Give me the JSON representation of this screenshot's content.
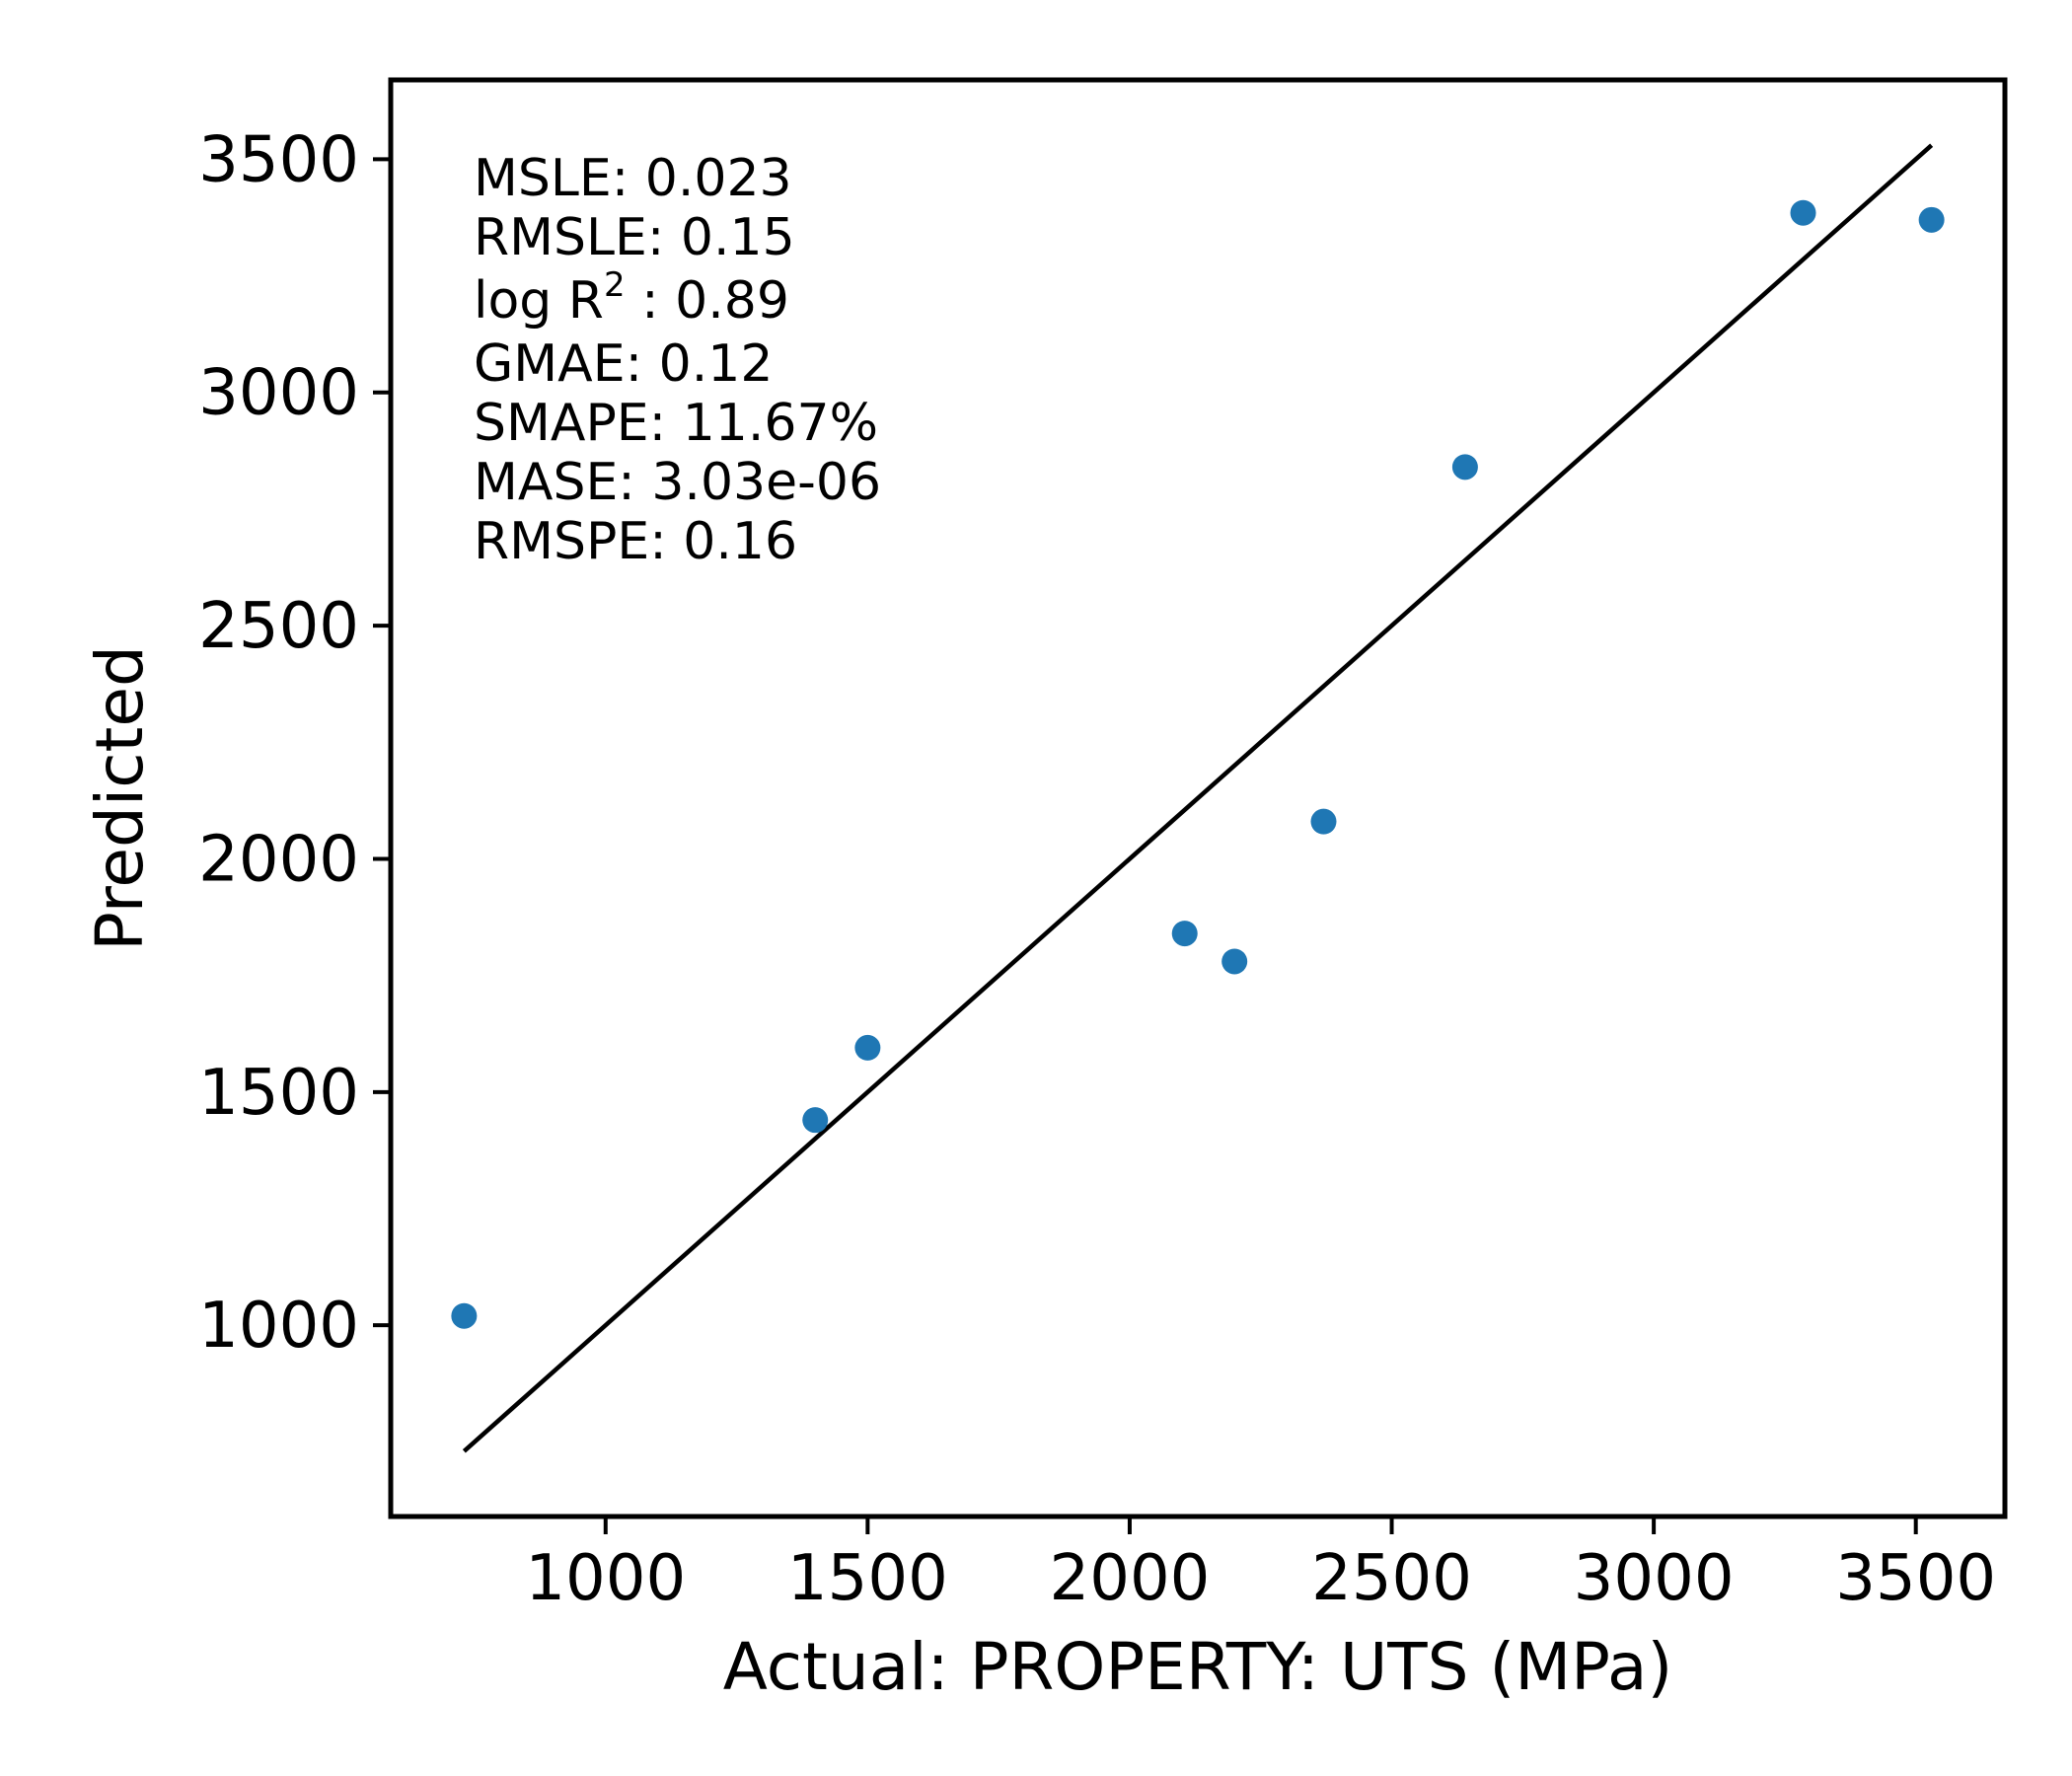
{
  "chart_data": {
    "type": "scatter",
    "title": "",
    "xlabel": "Actual: PROPERTY: UTS (MPa)",
    "ylabel": "Predicted",
    "xlim": [
      590,
      3670
    ],
    "ylim": [
      590,
      3670
    ],
    "xticks": [
      1000,
      1500,
      2000,
      2500,
      3000,
      3500
    ],
    "yticks": [
      1000,
      1500,
      2000,
      2500,
      3000,
      3500
    ],
    "grid": false,
    "point_color": "#1f77b4",
    "line_color": "#000000",
    "series": [
      {
        "points": [
          {
            "x": 730,
            "y": 1020
          },
          {
            "x": 1400,
            "y": 1440
          },
          {
            "x": 1500,
            "y": 1595
          },
          {
            "x": 2105,
            "y": 1840
          },
          {
            "x": 2200,
            "y": 1780
          },
          {
            "x": 2370,
            "y": 2080
          },
          {
            "x": 2640,
            "y": 2840
          },
          {
            "x": 3285,
            "y": 3385
          },
          {
            "x": 3530,
            "y": 3370
          }
        ]
      }
    ],
    "reference_line": {
      "from": [
        730,
        730
      ],
      "to": [
        3530,
        3530
      ]
    },
    "annotations": {
      "msle": "MSLE: 0.023",
      "rmsle": "RMSLE: 0.15",
      "log_r2_prefix": "log R",
      "log_r2_sup": "2",
      "log_r2_suffix": " : 0.89",
      "gmae": "GMAE: 0.12",
      "smape": "SMAPE: 11.67%",
      "mase": "MASE: 3.03e-06",
      "rmspe": "RMSPE: 0.16"
    }
  }
}
